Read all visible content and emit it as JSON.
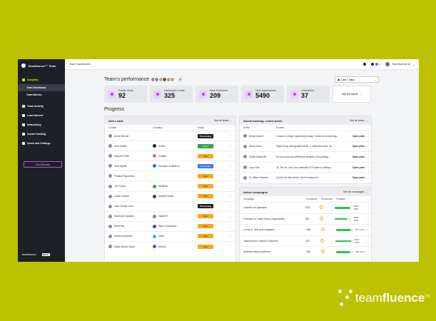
{
  "sidebar": {
    "brand": "Teamfluence™ Team",
    "analytics": "Analytics",
    "team_dashboard": "Team Dashboard",
    "team_metrics": "Team Metrics",
    "items": [
      "Team Activity",
      "Lead Harvest",
      "Networking",
      "Social Tracking",
      "Users and Settings"
    ],
    "add_button": "Add Discover",
    "footer_brand": "teamfluence",
    "footer_beta": "BETA"
  },
  "topbar": {
    "title": "Team Dashboard",
    "notifications": "2",
    "user": "Teamfluence.ai"
  },
  "performance": {
    "title": "Team's performance",
    "range": "Last 7 days",
    "full_report": "See full report",
    "kpis": [
      {
        "label": "Profile Visits",
        "value": "92"
      },
      {
        "label": "Harvested Leads",
        "value": "325"
      },
      {
        "label": "New Followers",
        "value": "209"
      },
      {
        "label": "New Impressions",
        "value": "5490"
      },
      {
        "label": "Comments",
        "value": "37"
      }
    ]
  },
  "progress": {
    "title": "Progress"
  },
  "new_leads": {
    "title": "New Leads",
    "see_all": "See all leads",
    "headers": [
      "Contact",
      "Company",
      "Status"
    ],
    "rows": [
      {
        "contact": "Arndt Wenzel",
        "company": "",
        "status": "Processing",
        "kind": "proc"
      },
      {
        "contact": "Alice Wyatt",
        "company": "Coliat",
        "status": "Active",
        "kind": "active"
      },
      {
        "contact": "Samuel Perlla",
        "company": "Zedlfity",
        "status": "New",
        "kind": "new"
      },
      {
        "contact": "Kadj Eghieri",
        "company": "Salvador Instituto A...",
        "status": "Connected",
        "kind": "conn"
      },
      {
        "contact": "Poliana Figueiredo",
        "company": "",
        "status": "New",
        "kind": "new"
      },
      {
        "contact": "Joe Farner",
        "company": "MediBan",
        "status": "New",
        "kind": "new"
      },
      {
        "contact": "Lucas Vicente",
        "company": "Notafitc Brazil",
        "status": "New",
        "kind": "new"
      },
      {
        "contact": "Juan Tomas Lobo",
        "company": "",
        "status": "Processing",
        "kind": "proc"
      },
      {
        "contact": "Santhosh Vijayako...",
        "company": "InspireIT",
        "status": "New",
        "kind": "new"
      },
      {
        "contact": "Rohit Raj",
        "company": "Wish Consultant...",
        "status": "New",
        "kind": "new"
      },
      {
        "contact": "Andrew Andrews",
        "company": "Glich",
        "status": "New",
        "kind": "new"
      },
      {
        "contact": "Nadia Nunes Nasci...",
        "company": "Akbeth",
        "status": "New",
        "kind": "new"
      }
    ]
  },
  "social": {
    "title": "Social tracking: Latest posts",
    "see_all": "See all posts",
    "headers": [
      "Author",
      "Content"
    ],
    "rows": [
      {
        "author": "Emily Kramer",
        "content": "I missed a major opportunity today. I know as a founding...",
        "action": "Open post"
      },
      {
        "author": "Elena Vemo",
        "content": "Eight of my best growth hacks: 1. Rebrand churn as...",
        "action": "Open post"
      },
      {
        "author": "Volker Ballander",
        "content": "Do you know the difference between Ouroselling...",
        "action": "Open post"
      },
      {
        "author": "Larry Kim",
        "content": "🔥 The #1 Clue Your Website IS Frontier is Selling...",
        "action": "Open post"
      },
      {
        "author": "Dr. Ailbe Cekesse",
        "content": "Ich bin mir fast sicher: Kein Kunde ist A...",
        "action": "Open post"
      }
    ]
  },
  "campaigns": {
    "title": "Active campaigns",
    "see_all": "See all campaigns",
    "headers": [
      "Campaign",
      "Connected",
      "Conversion",
      "Progress"
    ],
    "rows": [
      {
        "name": "LinkedIn ad Spenders",
        "connected": "1321",
        "progress": 0.88,
        "count": "6953 / 7250"
      },
      {
        "name": "Followers of Justin Nowo (Impactable) ...",
        "connected": "256",
        "progress": 0.74,
        "count": "6693 / 7000"
      },
      {
        "name": "Lenny M. Hub post engagers",
        "connected": "256",
        "progress": 0.82,
        "count": "971 / 971"
      },
      {
        "name": "Teamfluence LinkedIn Followers",
        "connected": "787",
        "progress": 0.9,
        "count": "826 / 1105"
      },
      {
        "name": "andreas jossoic audience",
        "connected": "256",
        "progress": 0.78,
        "count": "516 / 574"
      }
    ]
  },
  "promo_brand": {
    "prefix": "team",
    "bold": "fluence",
    "tm": "TM"
  },
  "colors": {
    "background": "#bcc200",
    "accent": "#a94de0",
    "sidebar": "#1e2027"
  }
}
